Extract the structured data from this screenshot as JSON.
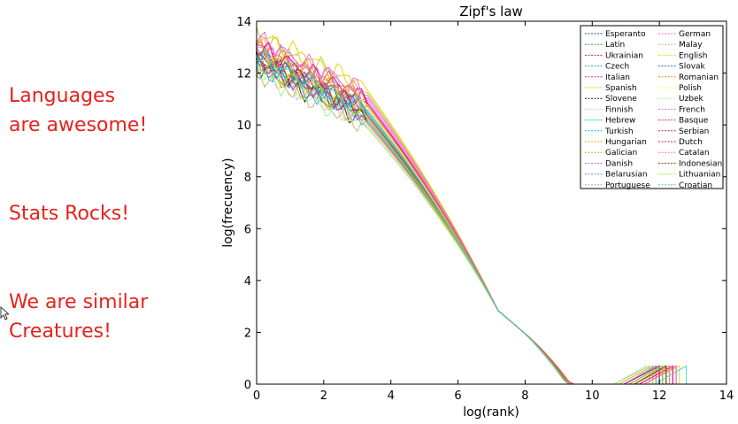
{
  "slide": {
    "text_1": [
      "Languages",
      "are awesome!"
    ],
    "text_2": [
      "Stats Rocks!"
    ],
    "text_3": [
      "We are similar",
      "Creatures!"
    ]
  },
  "colors": {
    "slide_text": "#e8211c"
  },
  "chart_data": {
    "type": "line",
    "title": "Zipf's law",
    "xlabel": "log(rank)",
    "ylabel": "log(frecuency)",
    "xlim": [
      0,
      14
    ],
    "ylim": [
      0,
      14
    ],
    "xticks": [
      0,
      2,
      4,
      6,
      8,
      10,
      12,
      14
    ],
    "yticks": [
      0,
      2,
      4,
      6,
      8,
      10,
      12,
      14
    ],
    "grid": false,
    "legend_position": "top-right",
    "legend_columns": 2,
    "series": [
      {
        "name": "Esperanto",
        "color": "#1f3fb4",
        "y0": 12.6,
        "xmax": 12.2
      },
      {
        "name": "Latin",
        "color": "#2e8b57",
        "y0": 12.4,
        "xmax": 12.0
      },
      {
        "name": "Ukrainian",
        "color": "#cc2222",
        "y0": 12.9,
        "xmax": 12.4
      },
      {
        "name": "Czech",
        "color": "#20b2aa",
        "y0": 12.7,
        "xmax": 12.3
      },
      {
        "name": "Italian",
        "color": "#b8329a",
        "y0": 13.0,
        "xmax": 12.3
      },
      {
        "name": "Spanish",
        "color": "#c8c814",
        "y0": 13.4,
        "xmax": 12.5
      },
      {
        "name": "Slovene",
        "color": "#111111",
        "y0": 12.2,
        "xmax": 12.0
      },
      {
        "name": "Finnish",
        "color": "#ffb6d2",
        "y0": 12.1,
        "xmax": 11.8
      },
      {
        "name": "Hebrew",
        "color": "#00bfff",
        "y0": 12.3,
        "xmax": 11.9
      },
      {
        "name": "Turkish",
        "color": "#00ced1",
        "y0": 12.5,
        "xmax": 12.1
      },
      {
        "name": "Hungarian",
        "color": "#ffa500",
        "y0": 12.2,
        "xmax": 11.8
      },
      {
        "name": "Galician",
        "color": "#9acd32",
        "y0": 12.8,
        "xmax": 12.2
      },
      {
        "name": "Danish",
        "color": "#9370db",
        "y0": 12.6,
        "xmax": 12.1
      },
      {
        "name": "Belarusian",
        "color": "#6495ed",
        "y0": 12.3,
        "xmax": 11.9
      },
      {
        "name": "Portuguese",
        "color": "#ee82ee",
        "y0": 13.1,
        "xmax": 12.4
      },
      {
        "name": "German",
        "color": "#ff69b4",
        "y0": 13.2,
        "xmax": 12.5
      },
      {
        "name": "Malay",
        "color": "#bdb76b",
        "y0": 12.0,
        "xmax": 11.7
      },
      {
        "name": "English",
        "color": "#e6d200",
        "y0": 13.5,
        "xmax": 12.6
      },
      {
        "name": "Slovak",
        "color": "#4169e1",
        "y0": 12.6,
        "xmax": 12.2
      },
      {
        "name": "Romanian",
        "color": "#ff8c00",
        "y0": 12.9,
        "xmax": 12.3
      },
      {
        "name": "Polish",
        "color": "#ffff33",
        "y0": 12.8,
        "xmax": 12.3
      },
      {
        "name": "Uzbek",
        "color": "#98fb98",
        "y0": 12.0,
        "xmax": 11.6
      },
      {
        "name": "French",
        "color": "#da70d6",
        "y0": 13.3,
        "xmax": 12.5
      },
      {
        "name": "Basque",
        "color": "#ff1493",
        "y0": 12.4,
        "xmax": 12.0
      },
      {
        "name": "Serbian",
        "color": "#dc143c",
        "y0": 12.5,
        "xmax": 12.1
      },
      {
        "name": "Dutch",
        "color": "#e0115f",
        "y0": 13.0,
        "xmax": 12.4
      },
      {
        "name": "Catalan",
        "color": "#f08080",
        "y0": 12.9,
        "xmax": 12.3
      },
      {
        "name": "Indonesian",
        "color": "#8b4513",
        "y0": 12.6,
        "xmax": 12.2
      },
      {
        "name": "Lithuanian",
        "color": "#7fff00",
        "y0": 12.4,
        "xmax": 12.1
      },
      {
        "name": "Croatian",
        "color": "#48d1cc",
        "y0": 12.6,
        "xmax": 12.8
      }
    ]
  }
}
